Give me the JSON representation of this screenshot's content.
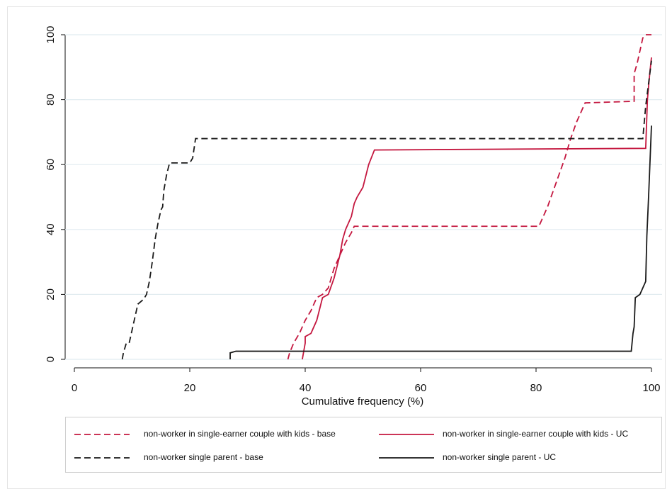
{
  "chart_data": {
    "type": "line",
    "x_label": "Cumulative frequency (%)",
    "xlim": [
      0,
      100
    ],
    "ylim": [
      0,
      100
    ],
    "xticks": [
      0,
      20,
      40,
      60,
      80,
      100
    ],
    "yticks": [
      0,
      20,
      40,
      60,
      80,
      100
    ],
    "grid": true,
    "series": [
      {
        "name": "non-worker in single-earner couple with kids - base",
        "color": "#c4173f",
        "style": "dashed",
        "x": [
          37,
          37.3,
          38,
          39,
          40,
          41,
          42,
          43,
          44,
          45,
          46,
          47,
          48,
          48.5,
          80.5,
          81,
          82,
          83,
          84,
          85,
          86,
          87,
          88,
          88.5,
          97,
          97,
          97.5,
          98,
          98.5,
          99,
          100
        ],
        "values": [
          0,
          2,
          5,
          8,
          12,
          15,
          19,
          20,
          22,
          28,
          32,
          36,
          39,
          41,
          41,
          43,
          47,
          52,
          57,
          62,
          68,
          73,
          77,
          79,
          79.5,
          88,
          91,
          95,
          99,
          100,
          100
        ]
      },
      {
        "name": "non-worker in single-earner couple with kids - UC",
        "color": "#c4173f",
        "style": "solid",
        "x": [
          39.5,
          40,
          40,
          41,
          42,
          43,
          44,
          45,
          46,
          46.5,
          47,
          48,
          48.5,
          49,
          50,
          51,
          52,
          99,
          99.3,
          99.7,
          100
        ],
        "values": [
          0,
          5,
          7,
          8,
          12,
          19,
          20,
          25,
          32,
          37,
          40,
          44,
          48,
          50,
          53,
          60,
          64.5,
          65,
          80,
          88,
          93
        ]
      },
      {
        "name": "non-worker single parent - base",
        "color": "#1a1a1a",
        "style": "dashed",
        "x": [
          8.3,
          8.5,
          9,
          9.5,
          10,
          11,
          12,
          12.5,
          13,
          13.5,
          14,
          14.5,
          15,
          15.3,
          15.5,
          16,
          16.5,
          20,
          20.5,
          21,
          98.5,
          99,
          99.5,
          100
        ],
        "values": [
          0,
          2,
          5,
          5,
          9,
          17,
          18.5,
          20,
          24,
          30,
          37,
          42,
          46,
          47,
          52,
          57,
          60.5,
          60.5,
          62,
          68,
          68,
          78,
          85,
          92
        ]
      },
      {
        "name": "non-worker single parent - UC",
        "color": "#1a1a1a",
        "style": "solid",
        "x": [
          27,
          27,
          28,
          96.5,
          96.8,
          97,
          97.2,
          98,
          98.5,
          99,
          99.2,
          99.5,
          100
        ],
        "values": [
          0,
          2,
          2.5,
          2.5,
          8,
          10,
          19,
          20,
          22,
          24,
          38,
          50,
          72
        ]
      }
    ]
  }
}
